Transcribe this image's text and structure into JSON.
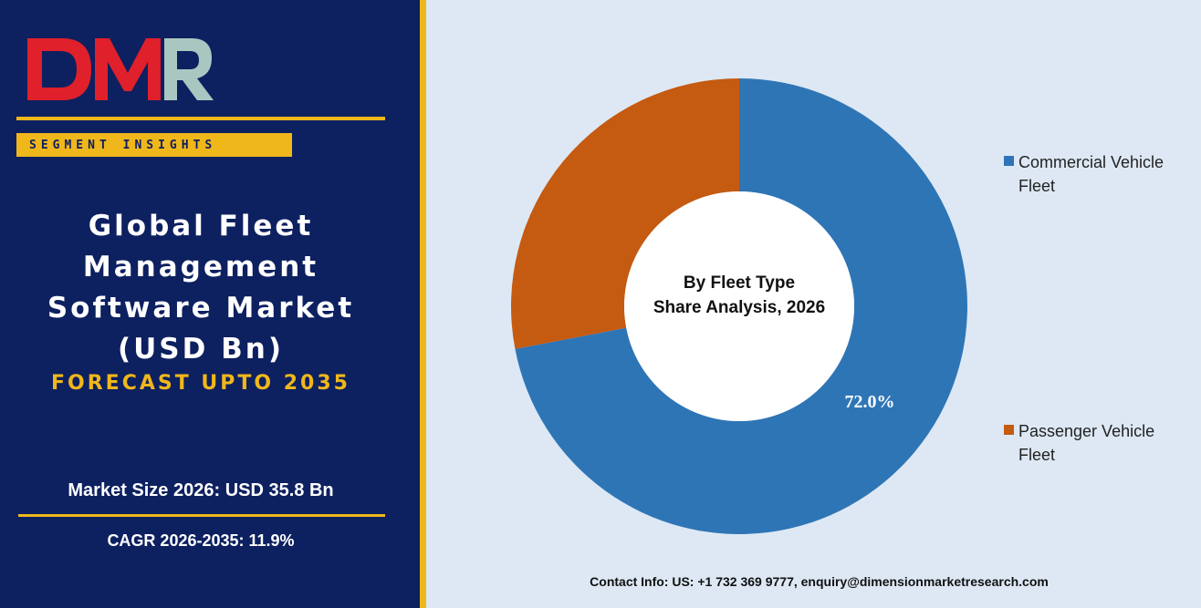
{
  "brand": {
    "logo_text": "DMR",
    "segment_badge": "SEGMENT INSIGHTS"
  },
  "report": {
    "title_lines": [
      "Global Fleet",
      "Management",
      "Software Market",
      "(USD Bn)"
    ],
    "forecast": "FORECAST UPTO 2035",
    "market_size": "Market Size 2026: USD 35.8 Bn",
    "cagr": "CAGR 2026-2035: 11.9%"
  },
  "colors": {
    "navy": "#0d2060",
    "gold": "#f0b71b",
    "panel": "#dde8f4",
    "commercial": "#2e75b6",
    "passenger": "#c55a11"
  },
  "chart_data": {
    "type": "pie",
    "variant": "donut",
    "center_title": [
      "By Fleet Type",
      "Share Analysis, 2026"
    ],
    "legend_position": "right",
    "series": [
      {
        "name": "Commercial Vehicle Fleet",
        "legend_lines": [
          "Commercial Vehicle",
          "Fleet"
        ],
        "value": 72.0,
        "label": "72.0%",
        "color": "#2e75b6"
      },
      {
        "name": "Passenger Vehicle Fleet",
        "legend_lines": [
          "Passenger Vehicle",
          "Fleet"
        ],
        "value": 28.0,
        "label": "",
        "color": "#c55a11"
      }
    ]
  },
  "contact": "Contact Info: US: +1 732 369 9777, enquiry@dimensionmarketresearch.com"
}
